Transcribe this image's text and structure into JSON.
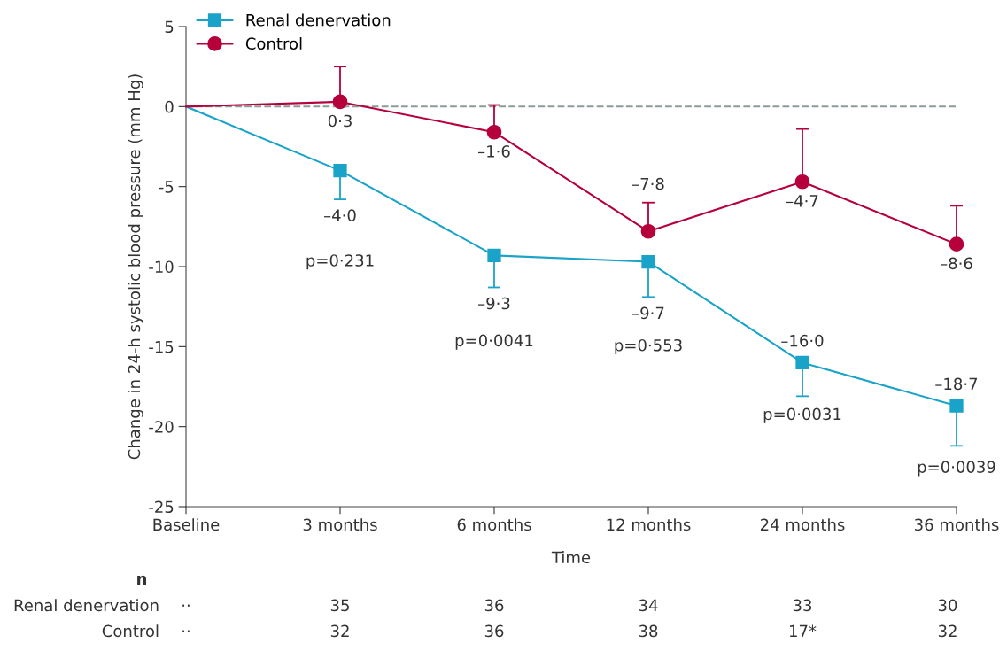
{
  "chart_data": {
    "type": "line",
    "xlabel": "Time",
    "ylabel": "Change in 24-h systolic blood pressure (mm Hg)",
    "categories": [
      "Baseline",
      "3 months",
      "6 months",
      "12 months",
      "24 months",
      "36 months"
    ],
    "series": [
      {
        "name": "Renal denervation",
        "color": "#1aa3c8",
        "marker": "square",
        "values": [
          0,
          -4.0,
          -9.3,
          -9.7,
          -16.0,
          -18.7
        ],
        "errors": [
          null,
          [
            -5.8,
            -4.0
          ],
          [
            -11.3,
            -9.3
          ],
          [
            -11.9,
            -9.7
          ],
          [
            -18.1,
            -16.0
          ],
          [
            -21.2,
            -18.7
          ]
        ],
        "value_labels": [
          null,
          "–4·0",
          "–9·3",
          "–9·7",
          "–16·0",
          "–18·7"
        ]
      },
      {
        "name": "Control",
        "color": "#b5003c",
        "marker": "circle",
        "values": [
          0,
          0.3,
          -1.6,
          -7.8,
          -4.7,
          -8.6
        ],
        "errors": [
          null,
          [
            0.3,
            2.5
          ],
          [
            -1.6,
            0.1
          ],
          [
            -7.8,
            -6.0
          ],
          [
            -4.7,
            -1.4
          ],
          [
            -8.6,
            -6.2
          ]
        ],
        "value_labels": [
          null,
          "0·3",
          "–1·6",
          "–7·8",
          "–4·7",
          "–8·6"
        ]
      }
    ],
    "ylim": [
      -25,
      5
    ],
    "yticks": [
      -25,
      -20,
      -15,
      -10,
      -5,
      0,
      5
    ],
    "ref_lines": [
      {
        "axis": "y",
        "value": 0,
        "color": "#8c9a9a",
        "line_style": "dashed"
      }
    ],
    "legend": "top left",
    "grid": false,
    "line_style": "solid",
    "annotations": [
      "p=0·231",
      "p=0·0041",
      "p=0·553",
      "p=0·0031",
      "p=0·0039",
      "n",
      "Renal denervation",
      "··",
      "35",
      "36",
      "34",
      "33",
      "30",
      "Control",
      "··",
      "32",
      "36",
      "38",
      "17*",
      "32"
    ]
  }
}
